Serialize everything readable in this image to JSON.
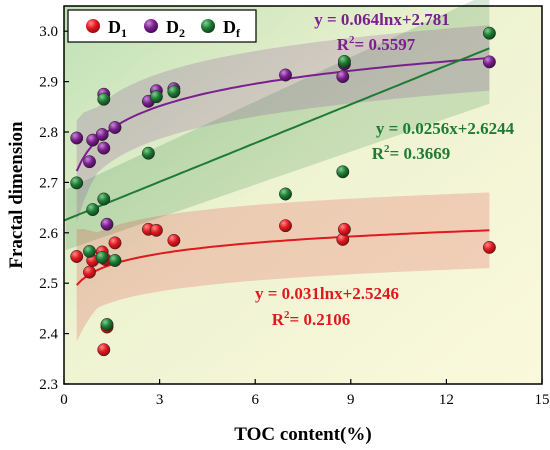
{
  "chart_data": {
    "type": "scatter",
    "xlabel": "TOC content(%)",
    "ylabel": "Fractal dimension",
    "xlim": [
      0,
      15
    ],
    "ylim": [
      2.3,
      3.05
    ],
    "x_ticks": [
      0,
      3,
      6,
      9,
      12,
      15
    ],
    "y_ticks": [
      2.3,
      2.4,
      2.5,
      2.6,
      2.7,
      2.8,
      2.9,
      3.0
    ],
    "x_tick_labels": [
      "0",
      "3",
      "6",
      "9",
      "12",
      "15"
    ],
    "y_tick_labels": [
      "2.3",
      "2.4",
      "2.5",
      "2.6",
      "2.7",
      "2.8",
      "2.9",
      "3.0"
    ],
    "grid": false,
    "legend_position": "top-left",
    "background": "diagonal gradient from light green (top-left) to pale yellow (bottom-right)",
    "series": [
      {
        "name": "D",
        "subscript": "1",
        "color": "#e0191f",
        "points": [
          {
            "x": 0.4,
            "y": 2.553
          },
          {
            "x": 0.8,
            "y": 2.522
          },
          {
            "x": 0.9,
            "y": 2.545
          },
          {
            "x": 1.2,
            "y": 2.562
          },
          {
            "x": 1.25,
            "y": 2.368
          },
          {
            "x": 1.35,
            "y": 2.413
          },
          {
            "x": 1.3,
            "y": 2.547
          },
          {
            "x": 1.6,
            "y": 2.58
          },
          {
            "x": 2.65,
            "y": 2.607
          },
          {
            "x": 2.9,
            "y": 2.605
          },
          {
            "x": 3.45,
            "y": 2.585
          },
          {
            "x": 6.95,
            "y": 2.614
          },
          {
            "x": 8.75,
            "y": 2.587
          },
          {
            "x": 8.8,
            "y": 2.607
          },
          {
            "x": 13.35,
            "y": 2.571
          }
        ],
        "fit": {
          "kind": "log",
          "a": 0.031,
          "b": 2.5246,
          "band": 0.075,
          "x_range": [
            0.4,
            13.35
          ]
        },
        "equation": "y = 0.031lnx+2.5246",
        "r2_label": "R",
        "r2_value": "= 0.2106"
      },
      {
        "name": "D",
        "subscript": "2",
        "color": "#7b1f8f",
        "points": [
          {
            "x": 0.4,
            "y": 2.788
          },
          {
            "x": 0.8,
            "y": 2.741
          },
          {
            "x": 0.9,
            "y": 2.784
          },
          {
            "x": 1.2,
            "y": 2.795
          },
          {
            "x": 1.25,
            "y": 2.875
          },
          {
            "x": 1.25,
            "y": 2.768
          },
          {
            "x": 1.35,
            "y": 2.617
          },
          {
            "x": 1.6,
            "y": 2.809
          },
          {
            "x": 2.65,
            "y": 2.861
          },
          {
            "x": 2.9,
            "y": 2.882
          },
          {
            "x": 3.45,
            "y": 2.886
          },
          {
            "x": 6.95,
            "y": 2.913
          },
          {
            "x": 8.75,
            "y": 2.91
          },
          {
            "x": 8.8,
            "y": 2.935
          },
          {
            "x": 13.35,
            "y": 2.939
          }
        ],
        "fit": {
          "kind": "log",
          "a": 0.064,
          "b": 2.781,
          "band": 0.065,
          "x_range": [
            0.4,
            13.35
          ]
        },
        "equation": "y = 0.064lnx+2.781",
        "r2_label": "R",
        "r2_value": "= 0.5597"
      },
      {
        "name": "D",
        "subscript": "f",
        "color": "#1e7b34",
        "points": [
          {
            "x": 0.4,
            "y": 2.699
          },
          {
            "x": 0.8,
            "y": 2.563
          },
          {
            "x": 0.9,
            "y": 2.646
          },
          {
            "x": 1.2,
            "y": 2.551
          },
          {
            "x": 1.25,
            "y": 2.667
          },
          {
            "x": 1.25,
            "y": 2.865
          },
          {
            "x": 1.35,
            "y": 2.418
          },
          {
            "x": 1.6,
            "y": 2.545
          },
          {
            "x": 2.65,
            "y": 2.758
          },
          {
            "x": 2.9,
            "y": 2.87
          },
          {
            "x": 3.45,
            "y": 2.88
          },
          {
            "x": 6.95,
            "y": 2.677
          },
          {
            "x": 8.75,
            "y": 2.721
          },
          {
            "x": 8.8,
            "y": 2.94
          },
          {
            "x": 13.35,
            "y": 2.996
          }
        ],
        "fit": {
          "kind": "linear",
          "a": 0.0256,
          "b": 2.6244,
          "band_start": 0.06,
          "band_end": 0.11,
          "x_range": [
            0.0,
            13.35
          ]
        },
        "equation": "y = 0.0256x+2.6244",
        "r2_label": "R",
        "r2_value": "= 0.3669"
      }
    ]
  }
}
